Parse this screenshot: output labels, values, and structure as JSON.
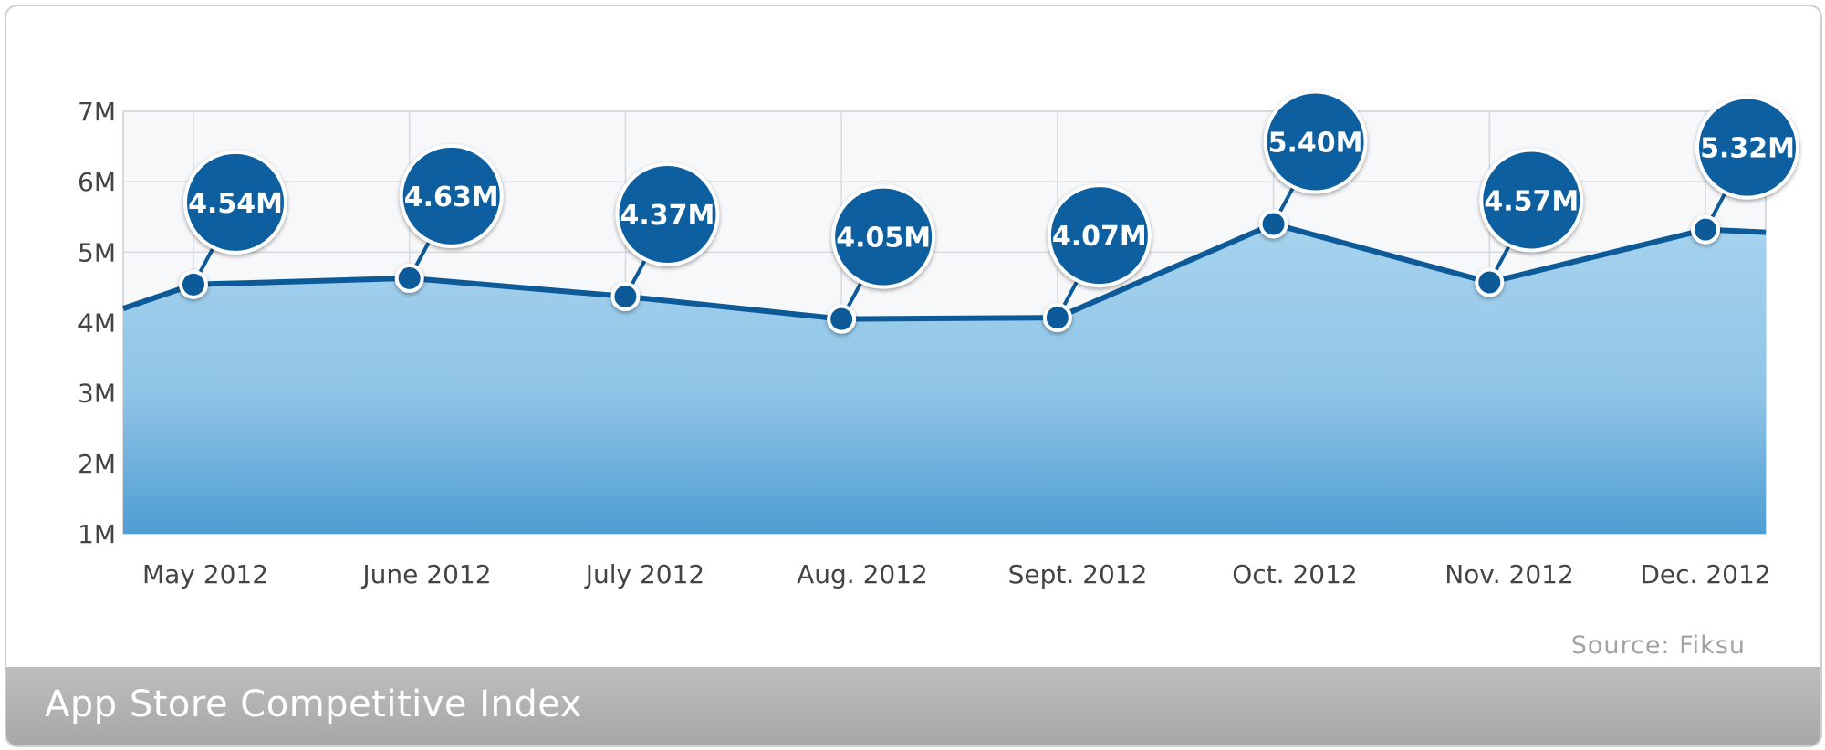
{
  "chart_data": {
    "type": "area",
    "title": "App Store Competitive Index",
    "source": "Source: Fiksu",
    "categories": [
      "May 2012",
      "June 2012",
      "July 2012",
      "Aug. 2012",
      "Sept. 2012",
      "Oct. 2012",
      "Nov. 2012",
      "Dec. 2012"
    ],
    "values": [
      4.54,
      4.63,
      4.37,
      4.05,
      4.07,
      5.4,
      4.57,
      5.32
    ],
    "data_labels": [
      "4.54M",
      "4.63M",
      "4.37M",
      "4.05M",
      "4.07M",
      "5.40M",
      "4.57M",
      "5.32M"
    ],
    "y_ticks": [
      "1M",
      "2M",
      "3M",
      "4M",
      "5M",
      "6M",
      "7M"
    ],
    "ylim": [
      1,
      7
    ],
    "grid": true,
    "colors": {
      "line": "#0d5a99",
      "bubble": "#0b5fa0",
      "fill_top": "#a6d3ee",
      "fill_bottom": "#4f9dd3",
      "plot_bg": "#f7f8fa",
      "grid": "#d9dadd"
    }
  }
}
